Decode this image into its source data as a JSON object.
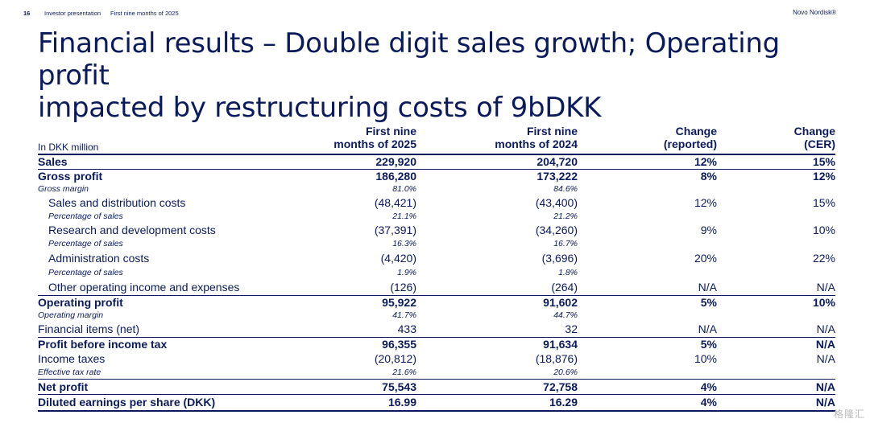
{
  "header": {
    "page_number": "16",
    "presentation": "Investor presentation",
    "period": "First nine months of 2025",
    "brand": "Novo Nordisk®"
  },
  "title_line1": "Financial results – Double digit sales growth; Operating profit",
  "title_line2": "impacted by restructuring costs of 9bDKK",
  "table": {
    "unit_label": "In DKK million",
    "columns": [
      {
        "line1": "First nine",
        "line2": "months of 2025"
      },
      {
        "line1": "First nine",
        "line2": "months of 2024"
      },
      {
        "line1": "Change",
        "line2": "(reported)"
      },
      {
        "line1": "Change",
        "line2": "(CER)"
      }
    ],
    "rows": [
      {
        "label": "Sales",
        "v": [
          "229,920",
          "204,720",
          "12%",
          "15%"
        ]
      },
      {
        "label": "Gross profit",
        "v": [
          "186,280",
          "173,222",
          "8%",
          "12%"
        ]
      },
      {
        "label": "Gross margin",
        "v": [
          "81.0%",
          "84.6%",
          "",
          ""
        ]
      },
      {
        "label": "Sales and distribution costs",
        "v": [
          "(48,421)",
          "(43,400)",
          "12%",
          "15%"
        ]
      },
      {
        "label": "Percentage of sales",
        "v": [
          "21.1%",
          "21.2%",
          "",
          ""
        ]
      },
      {
        "label": "Research and development costs",
        "v": [
          "(37,391)",
          "(34,260)",
          "9%",
          "10%"
        ]
      },
      {
        "label": "Percentage of sales",
        "v": [
          "16.3%",
          "16.7%",
          "",
          ""
        ]
      },
      {
        "label": "Administration costs",
        "v": [
          "(4,420)",
          "(3,696)",
          "20%",
          "22%"
        ]
      },
      {
        "label": "Percentage of sales",
        "v": [
          "1.9%",
          "1.8%",
          "",
          ""
        ]
      },
      {
        "label": "Other operating income and expenses",
        "v": [
          "(126)",
          "(264)",
          "N/A",
          "N/A"
        ]
      },
      {
        "label": "Operating profit",
        "v": [
          "95,922",
          "91,602",
          "5%",
          "10%"
        ]
      },
      {
        "label": "Operating margin",
        "v": [
          "41.7%",
          "44.7%",
          "",
          ""
        ]
      },
      {
        "label": "Financial items (net)",
        "v": [
          "433",
          "32",
          "N/A",
          "N/A"
        ]
      },
      {
        "label": "Profit before income tax",
        "v": [
          "96,355",
          "91,634",
          "5%",
          "N/A"
        ]
      },
      {
        "label": "Income taxes",
        "v": [
          "(20,812)",
          "(18,876)",
          "10%",
          "N/A"
        ]
      },
      {
        "label": "Effective tax rate",
        "v": [
          "21.6%",
          "20.6%",
          "",
          ""
        ]
      },
      {
        "label": "Net profit",
        "v": [
          "75,543",
          "72,758",
          "4%",
          "N/A"
        ]
      },
      {
        "label": "Diluted earnings per share (DKK)",
        "v": [
          "16.99",
          "16.29",
          "4%",
          "N/A"
        ]
      }
    ]
  },
  "watermark": "格隆汇"
}
